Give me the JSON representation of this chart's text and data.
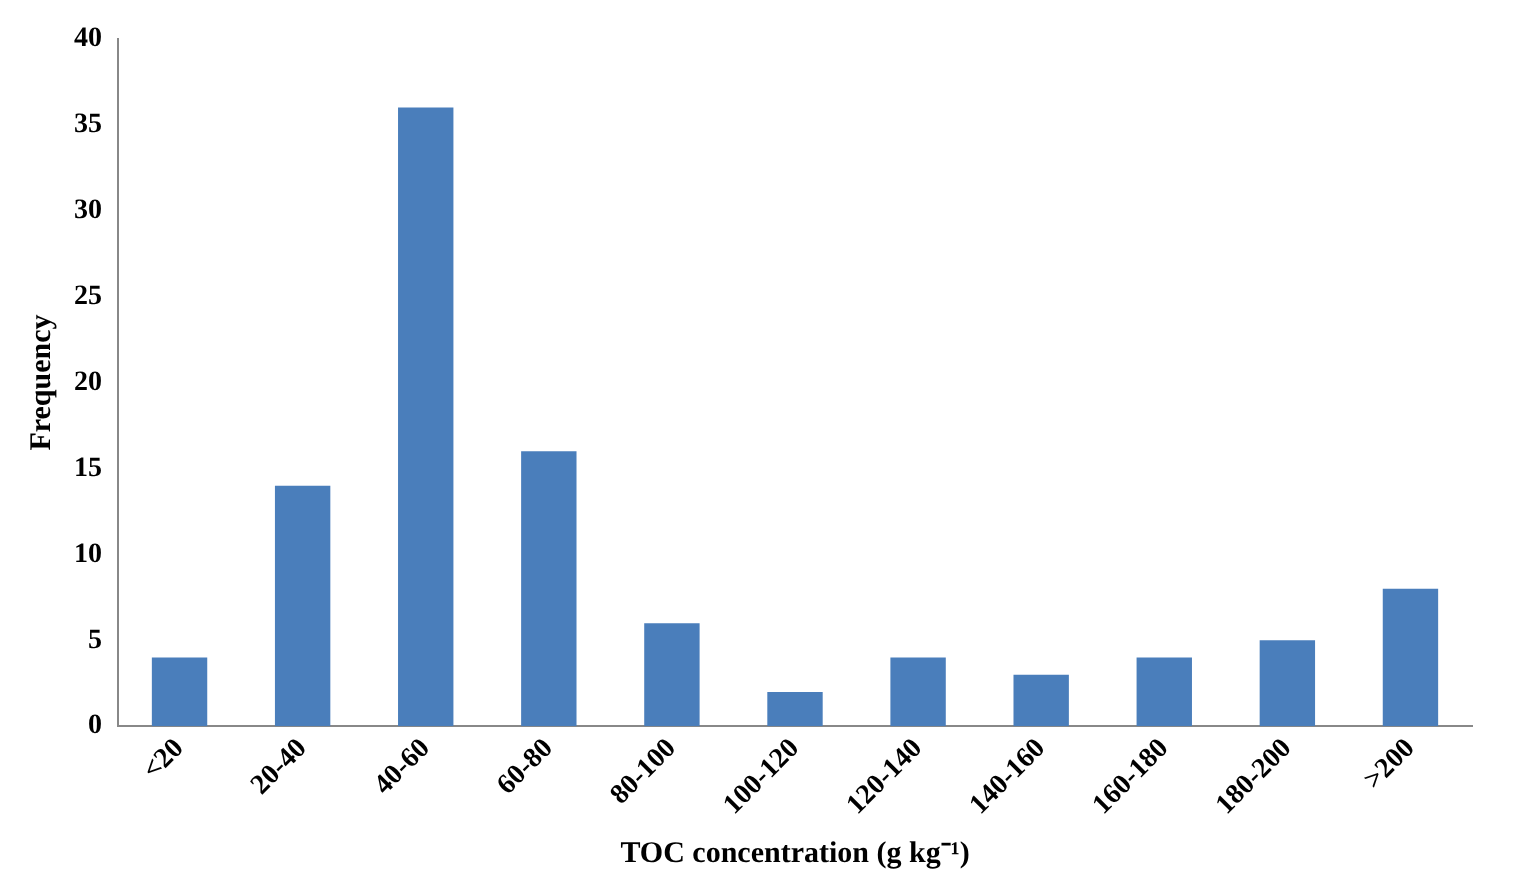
{
  "chart_data": {
    "type": "bar",
    "xlabel": "TOC concentration (g kg⁻¹)",
    "ylabel": "Frequency",
    "categories": [
      "<20",
      "20-40",
      "40-60",
      "60-80",
      "80-100",
      "100-120",
      "120-140",
      "140-160",
      "160-180",
      "180-200",
      ">200"
    ],
    "values": [
      4,
      14,
      36,
      16,
      6,
      2,
      4,
      3,
      4,
      5,
      8
    ],
    "color": "#4a7ebb",
    "ylim": [
      0,
      40
    ],
    "yticks": [
      0,
      5,
      10,
      15,
      20,
      25,
      30,
      35,
      40
    ],
    "grid": false,
    "legend": false
  }
}
